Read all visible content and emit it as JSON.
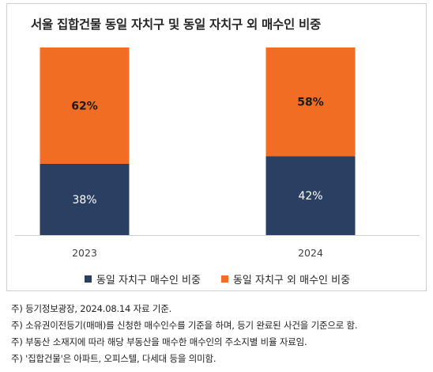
{
  "chart_data": {
    "type": "bar",
    "stacked": true,
    "title": "서울 집합건물 동일 자치구 및 동일 자치구 외 매수인 비중",
    "categories": [
      "2023",
      "2024"
    ],
    "series": [
      {
        "name": "동일 자치구 매수인 비중",
        "values": [
          38,
          42
        ],
        "labels": [
          "38%",
          "42%"
        ],
        "color": "#2a3f62",
        "label_color": "#ffffff",
        "label_bold": false
      },
      {
        "name": "동일 자치구 외 매수인 비중",
        "values": [
          62,
          58
        ],
        "labels": [
          "62%",
          "58%"
        ],
        "color": "#f26d24",
        "label_color": "#1a1a1a",
        "label_bold": true
      }
    ],
    "ylim": [
      0,
      100
    ],
    "grid": false,
    "legend": "bottom"
  },
  "notes": [
    "주) 등기정보광장, 2024.08.14 자료 기준.",
    "주) 소유권이전등기(매매)를 신청한 매수인수를 기준을 하며, 등기 완료된 사건을 기준으로 함.",
    "주) 부동산 소재지에 따라 해당 부동산을 매수한 매수인의 주소지별 비율 자료임.",
    "주) '집합건물'은 아파트, 오피스텔, 다세대 등을 의미함."
  ]
}
